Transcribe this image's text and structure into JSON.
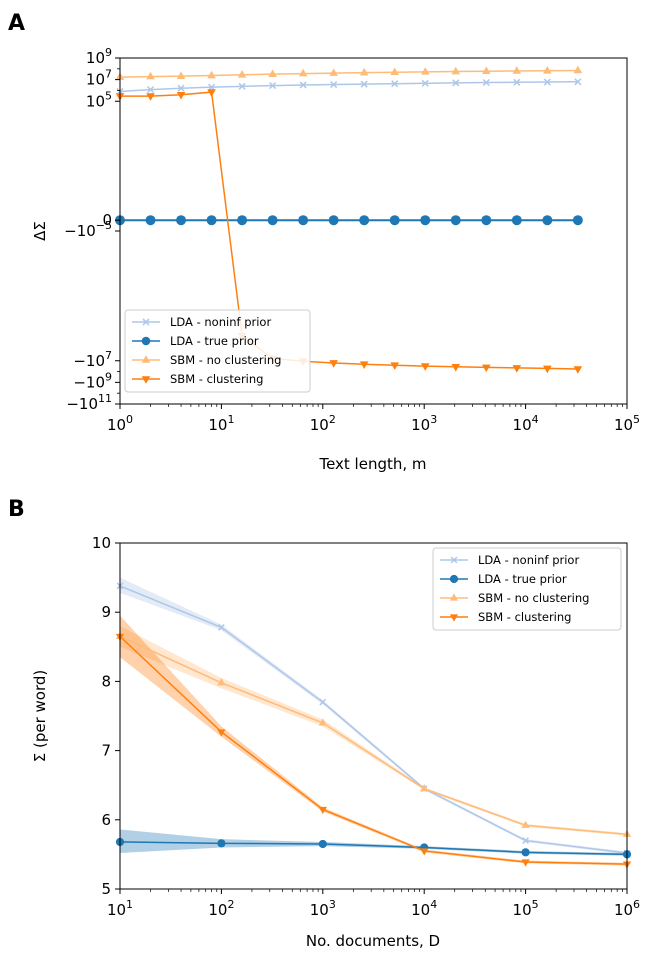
{
  "chart_data": [
    {
      "panel": "A",
      "type": "line",
      "xlabel": "Text length, m",
      "ylabel": "ΔΣ",
      "x_scale": "log",
      "y_scale": "symlog",
      "xlim": [
        1,
        100000
      ],
      "x_ticks": [
        {
          "value": 1,
          "base": "10",
          "exp": "0"
        },
        {
          "value": 10,
          "base": "10",
          "exp": "1"
        },
        {
          "value": 100,
          "base": "10",
          "exp": "2"
        },
        {
          "value": 1000,
          "base": "10",
          "exp": "3"
        },
        {
          "value": 10000,
          "base": "10",
          "exp": "4"
        },
        {
          "value": 100000,
          "base": "10",
          "exp": "5"
        }
      ],
      "y_ticks": [
        {
          "value": 1000000000.0,
          "base": "10",
          "exp": "9"
        },
        {
          "value": 10000000.0,
          "base": "10",
          "exp": "7"
        },
        {
          "value": 100000.0,
          "base": "10",
          "exp": "5"
        },
        {
          "value": 0,
          "base": "0",
          "exp": ""
        },
        {
          "value": -1e-05,
          "base": "−10",
          "exp": "−5"
        },
        {
          "value": -10000000.0,
          "base": "−10",
          "exp": "7"
        },
        {
          "value": -1000000000.0,
          "base": "−10",
          "exp": "9"
        },
        {
          "value": -100000000000.0,
          "base": "−10",
          "exp": "11"
        }
      ],
      "x": [
        1,
        2,
        4,
        8,
        16,
        32,
        64,
        128,
        256,
        512,
        1024,
        2048,
        4096,
        8192,
        16384,
        32768
      ],
      "series": [
        {
          "name": "LDA - noninf prior",
          "color": "#aec7e8",
          "marker": "x",
          "values": [
            800000,
            1200000,
            1600000,
            2000000,
            2400000,
            2800000,
            3200000,
            3500000,
            3800000,
            4200000,
            4600000,
            5000000,
            5400000,
            5700000,
            6000000,
            6300000
          ]
        },
        {
          "name": "LDA - true prior",
          "color": "#1f77b4",
          "marker": "circle",
          "values": [
            0,
            0,
            0,
            0,
            0,
            0,
            0,
            0,
            0,
            0,
            0,
            0,
            0,
            0,
            0,
            0
          ]
        },
        {
          "name": "SBM - no clustering",
          "color": "#ffbb78",
          "marker": "triangle-up",
          "values": [
            17000000,
            19000000,
            21000000,
            24000000,
            28000000,
            32000000,
            36000000,
            40000000,
            44000000,
            48000000,
            52000000,
            56000000,
            60000000,
            63000000,
            66000000,
            70000000
          ]
        },
        {
          "name": "SBM - clustering",
          "color": "#ff7f0e",
          "marker": "triangle-down",
          "values": [
            300000,
            300000,
            400000,
            700000,
            -50000,
            -6000000,
            -11000000,
            -16000000,
            -21000000,
            -26000000,
            -31000000,
            -36000000,
            -41000000,
            -46000000,
            -51000000,
            -58000000
          ]
        }
      ],
      "legend_position": "lower-left"
    },
    {
      "panel": "B",
      "type": "line",
      "xlabel": "No. documents, D",
      "ylabel": "Σ (per word)",
      "x_scale": "log",
      "xlim": [
        10,
        1000000
      ],
      "ylim": [
        5,
        10
      ],
      "x_ticks": [
        {
          "value": 10,
          "base": "10",
          "exp": "1"
        },
        {
          "value": 100,
          "base": "10",
          "exp": "2"
        },
        {
          "value": 1000,
          "base": "10",
          "exp": "3"
        },
        {
          "value": 10000,
          "base": "10",
          "exp": "4"
        },
        {
          "value": 100000,
          "base": "10",
          "exp": "5"
        },
        {
          "value": 1000000,
          "base": "10",
          "exp": "6"
        }
      ],
      "y_ticks": [
        "5",
        "6",
        "7",
        "8",
        "9",
        "10"
      ],
      "x": [
        10,
        100,
        1000,
        10000,
        100000,
        1000000
      ],
      "series": [
        {
          "name": "LDA - noninf prior",
          "color": "#aec7e8",
          "marker": "x",
          "values": [
            9.38,
            8.78,
            7.7,
            6.45,
            5.7,
            5.52
          ],
          "band_lower": [
            9.28,
            8.74,
            7.67,
            6.43,
            5.68,
            5.5
          ],
          "band_upper": [
            9.5,
            8.82,
            7.73,
            6.47,
            5.72,
            5.54
          ]
        },
        {
          "name": "LDA - true prior",
          "color": "#1f77b4",
          "marker": "circle",
          "values": [
            5.68,
            5.66,
            5.65,
            5.6,
            5.53,
            5.5
          ],
          "band_lower": [
            5.52,
            5.6,
            5.62,
            5.58,
            5.51,
            5.48
          ],
          "band_upper": [
            5.86,
            5.72,
            5.68,
            5.62,
            5.55,
            5.52
          ]
        },
        {
          "name": "SBM - no clustering",
          "color": "#ffbb78",
          "marker": "triangle-up",
          "values": [
            8.65,
            7.98,
            7.4,
            6.45,
            5.92,
            5.79
          ],
          "band_lower": [
            8.5,
            7.9,
            7.35,
            6.43,
            5.9,
            5.77
          ],
          "band_upper": [
            8.8,
            8.05,
            7.45,
            6.47,
            5.94,
            5.81
          ]
        },
        {
          "name": "SBM - clustering",
          "color": "#ff7f0e",
          "marker": "triangle-down",
          "values": [
            8.65,
            7.27,
            6.15,
            5.55,
            5.39,
            5.36
          ],
          "band_lower": [
            8.35,
            7.2,
            6.12,
            5.53,
            5.37,
            5.34
          ],
          "band_upper": [
            8.95,
            7.35,
            6.18,
            5.57,
            5.41,
            5.38
          ]
        }
      ],
      "legend_position": "top-right"
    }
  ]
}
